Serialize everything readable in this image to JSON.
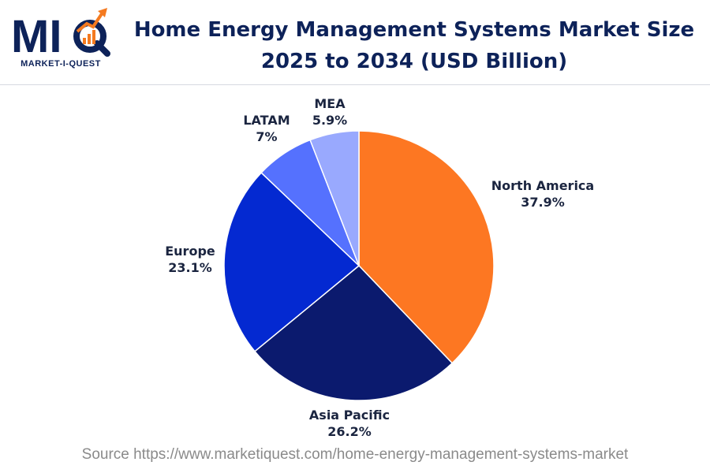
{
  "logo": {
    "letters": "MIQ",
    "text": "MARKET-I-QUEST",
    "primary_color": "#0d2259",
    "accent_color": "#f47a20"
  },
  "header": {
    "title_line1": "Home Energy Management Systems Market Size",
    "title_line2": "2025 to 2034 (USD Billion)"
  },
  "footer": {
    "source": "Source https://www.marketiquest.com/home-energy-management-systems-market"
  },
  "chart_data": {
    "type": "pie",
    "start": "top",
    "direction": "clockwise",
    "slices": [
      {
        "label": "North America",
        "value": 37.9,
        "value_label": "37.9%",
        "color": "#fd7722"
      },
      {
        "label": "Asia Pacific",
        "value": 26.2,
        "value_label": "26.2%",
        "color": "#0b1a6e"
      },
      {
        "label": "Europe",
        "value": 23.1,
        "value_label": "23.1%",
        "color": "#0429d1"
      },
      {
        "label": "LATAM",
        "value": 7,
        "value_label": "7%",
        "color": "#5571fe"
      },
      {
        "label": "MEA",
        "value": 5.9,
        "value_label": "5.9%",
        "color": "#99a9fe"
      }
    ],
    "legend": "none"
  }
}
